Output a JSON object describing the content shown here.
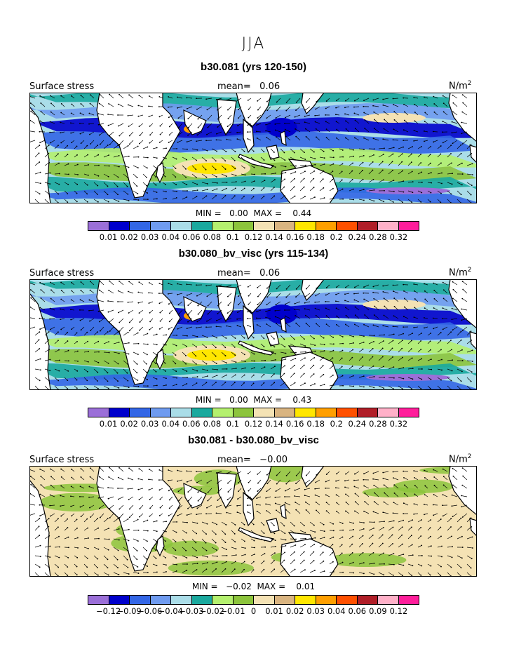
{
  "season": "JJA",
  "colors": [
    "#9b6fd8",
    "#0000cc",
    "#3366e6",
    "#6f9bf0",
    "#aadde8",
    "#1aa99e",
    "#b4f06e",
    "#8cc43c",
    "#f4e2b4",
    "#d9b480",
    "#ffe600",
    "#ff9f00",
    "#ff5000",
    "#b01e28",
    "#ffb0c8",
    "#ff1e9b"
  ],
  "land_color": "#ffffff",
  "panels": [
    {
      "title": "b30.081 (yrs 120-150)",
      "field": "Surface stress",
      "mean_label": "mean=",
      "mean": "0.06",
      "units": "N/m",
      "units_exp": "2",
      "min_label": "MIN =",
      "min": "0.00",
      "max_label": "MAX =",
      "max": "0.44",
      "levels": [
        "0.01",
        "0.02",
        "0.03",
        "0.04",
        "0.06",
        "0.08",
        "0.1",
        "0.12",
        "0.14",
        "0.16",
        "0.18",
        "0.2",
        "0.24",
        "0.28",
        "0.32"
      ]
    },
    {
      "title": "b30.080_bv_visc (yrs 115-134)",
      "field": "Surface stress",
      "mean_label": "mean=",
      "mean": "0.06",
      "units": "N/m",
      "units_exp": "2",
      "min_label": "MIN =",
      "min": "0.00",
      "max_label": "MAX =",
      "max": "0.43",
      "levels": [
        "0.01",
        "0.02",
        "0.03",
        "0.04",
        "0.06",
        "0.08",
        "0.1",
        "0.12",
        "0.14",
        "0.16",
        "0.18",
        "0.2",
        "0.24",
        "0.28",
        "0.32"
      ]
    },
    {
      "title": "b30.081 - b30.080_bv_visc",
      "field": "Surface stress",
      "mean_label": "mean=",
      "mean": "−0.00",
      "units": "N/m",
      "units_exp": "2",
      "min_label": "MIN =",
      "min": "−0.02",
      "max_label": "MAX =",
      "max": "0.01",
      "levels": [
        "−0.12",
        "−0.09",
        "−0.06",
        "−0.04",
        "−0.03",
        "−0.02",
        "−0.01",
        "0",
        "0.01",
        "0.02",
        "0.03",
        "0.04",
        "0.06",
        "0.09",
        "0.12"
      ]
    }
  ]
}
